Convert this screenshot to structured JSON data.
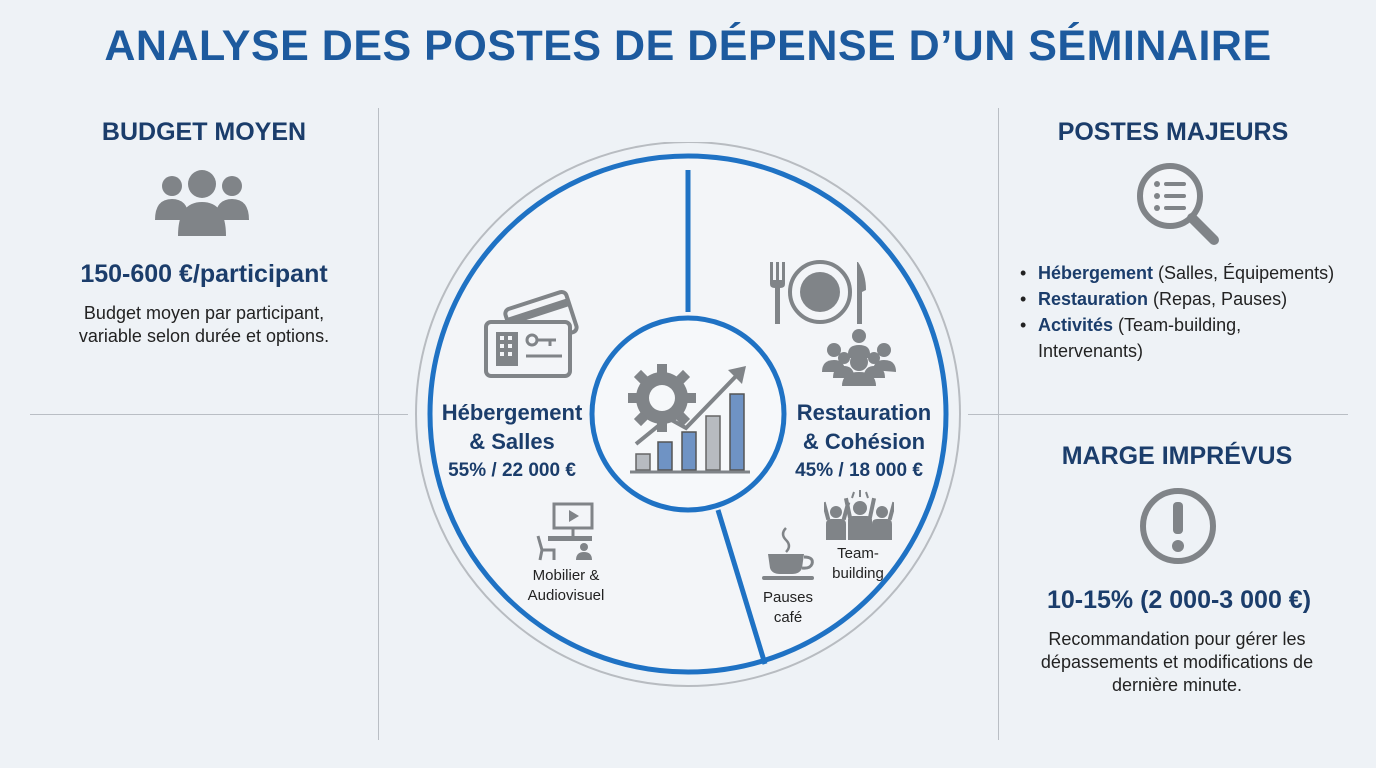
{
  "title": "ANALYSE DES POSTES DE DÉPENSE D’UN SÉMINAIRE",
  "left": {
    "heading": "BUDGET MOYEN",
    "icon": "people-group-icon",
    "value": "150-600 €/participant",
    "description_lines": [
      "Budget moyen par participant,",
      "variable selon durée et options."
    ]
  },
  "center": {
    "left_segment": {
      "title_lines": [
        "Hébergement",
        "& Salles"
      ],
      "value": "55% / 22 000 €",
      "share": 55,
      "icon": "hotel-card-icon",
      "sub_item": {
        "icon": "furniture-screen-icon",
        "label_lines": [
          "Mobilier &",
          "Audiovisuel"
        ]
      }
    },
    "right_segment": {
      "title_lines": [
        "Restauration",
        "& Cohésion"
      ],
      "value": "45% / 18 000 €",
      "share": 45,
      "icons": [
        "cutlery-plate-icon",
        "people-group-icon"
      ],
      "sub_items": [
        {
          "icon": "coffee-cup-icon",
          "label_lines": [
            "Pauses",
            "café"
          ]
        },
        {
          "icon": "team-cheer-icon",
          "label_lines": [
            "Team-",
            "building"
          ]
        }
      ]
    },
    "hub_icon": "gear-chart-growth-icon",
    "colors": {
      "ring": "#1f72c4",
      "outer_ring": "#b8bcc1",
      "icon_gray": "#808488",
      "bar_blue": "#6f93c4"
    }
  },
  "right_top": {
    "heading": "POSTES MAJEURS",
    "icon": "magnifier-list-icon",
    "bullets": [
      {
        "bold": "Hébergement",
        "rest": " (Salles, Équipements)"
      },
      {
        "bold": "Restauration",
        "rest": " (Repas, Pauses)"
      },
      {
        "bold": "Activités",
        "rest": " (Team-building,"
      },
      {
        "bold": "",
        "rest": "Intervenants)"
      }
    ]
  },
  "right_bottom": {
    "heading": "MARGE IMPRÉVUS",
    "icon": "exclamation-circle-icon",
    "value": "10-15% (2 000-3 000 €)",
    "description_lines": [
      "Recommandation pour gérer les",
      "dépassements et modifications de",
      "dernière minute."
    ]
  }
}
